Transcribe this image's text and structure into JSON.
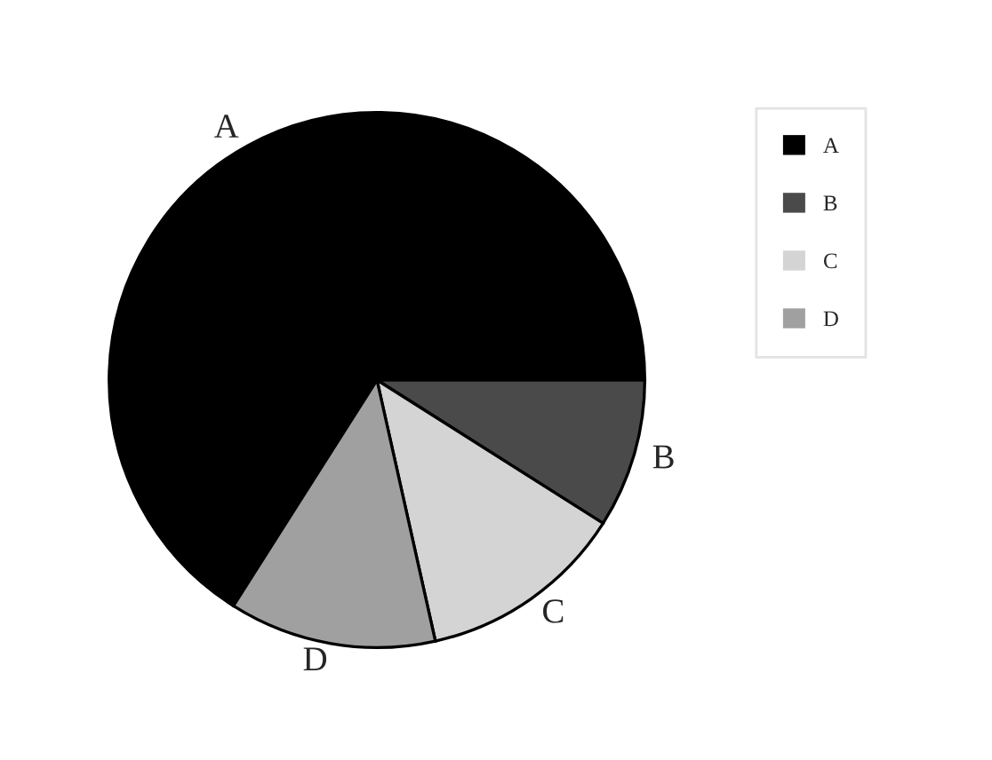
{
  "chart_data": {
    "type": "pie",
    "categories": [
      "A",
      "B",
      "C",
      "D"
    ],
    "values": [
      66,
      9,
      12.5,
      12.5
    ],
    "colors": [
      "#000000",
      "#4a4a4a",
      "#d4d4d4",
      "#a0a0a0"
    ],
    "legend": "right"
  }
}
